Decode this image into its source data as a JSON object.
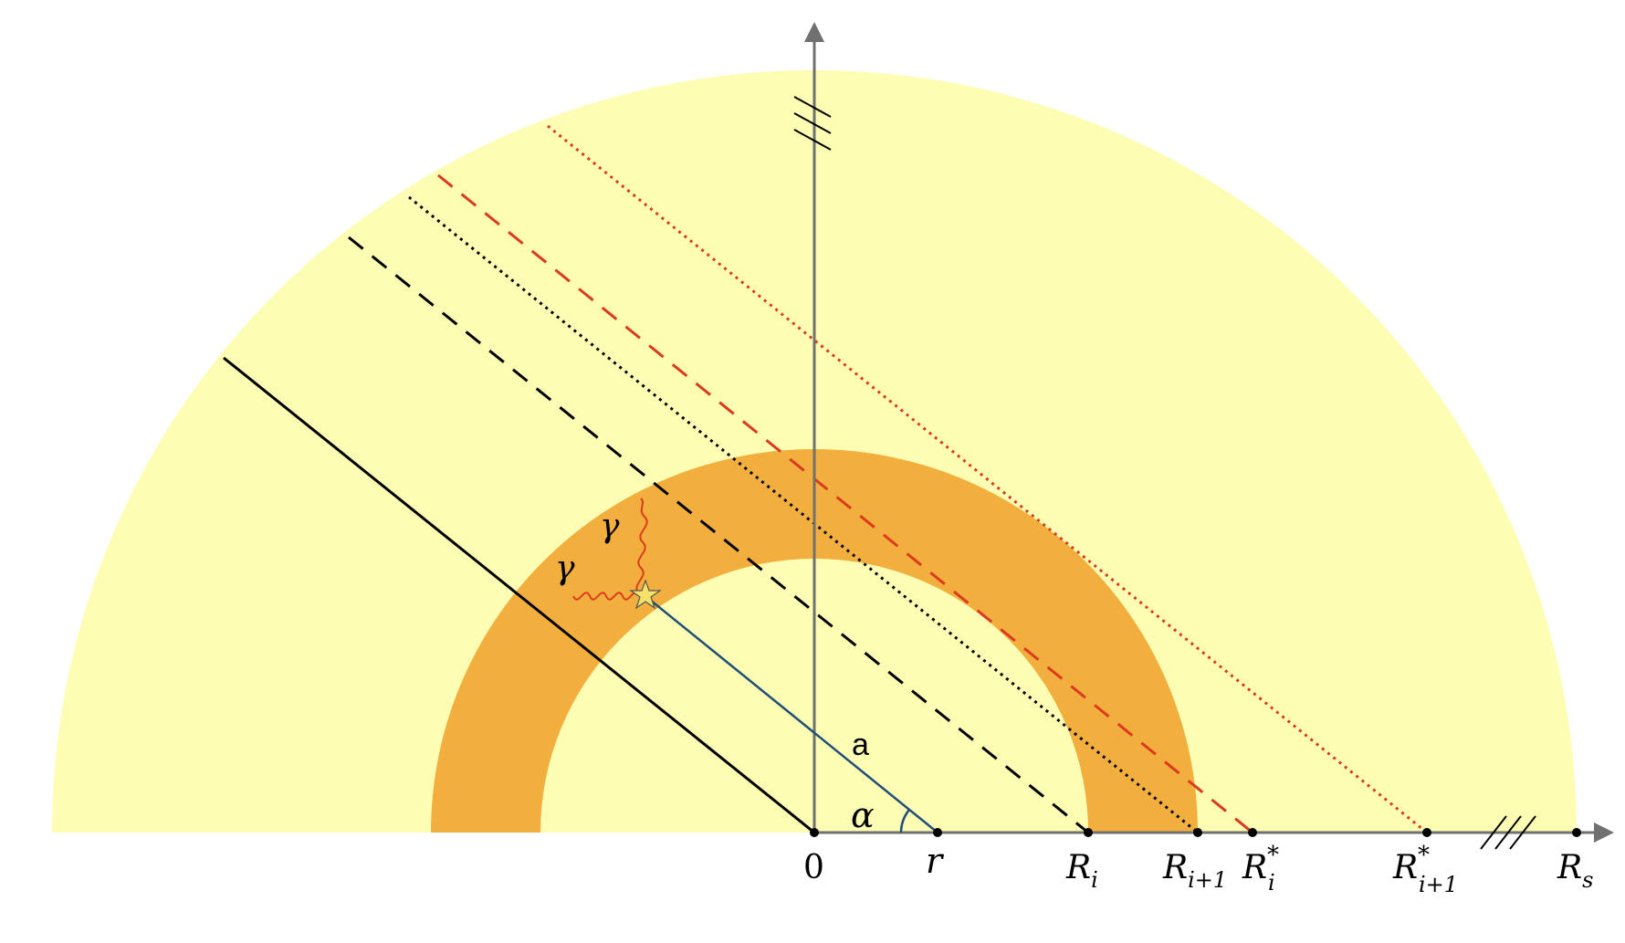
{
  "colors": {
    "outer_sphere": "#fdfdb4",
    "shell": "#f3af3d",
    "axis": "#707070",
    "radius_line": "#1f4e79",
    "red_lines": "#dc3a1f",
    "black_lines": "#000000",
    "gamma": "#dc3a1f",
    "star_fill": "#f6e26b"
  },
  "labels": {
    "origin": "0",
    "r_point": "r",
    "R_i": {
      "base": "R",
      "sub": "i",
      "sup": ""
    },
    "R_i_plus_1": {
      "base": "R",
      "sub": "i+1",
      "sup": ""
    },
    "R_i_star": {
      "base": "R",
      "sub": "i",
      "sup": "*"
    },
    "R_i_plus_1_star": {
      "base": "R",
      "sub": "i+1",
      "sup": "*"
    },
    "R_s": {
      "base": "R",
      "sub": "s",
      "sup": ""
    },
    "distance": "a",
    "angle": "α",
    "gamma_1": "γ",
    "gamma_2": "γ"
  },
  "icons": {
    "emission_point": "star-icon",
    "axis_break": "triple-slash-break-icon",
    "photon": "wavy-photon-icon"
  }
}
